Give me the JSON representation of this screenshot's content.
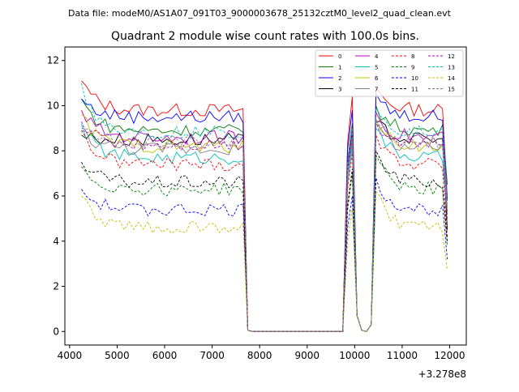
{
  "suptitle": "Data file: modeM0/AS1A07_091T03_9000003678_25132cztM0_level2_quad_clean.evt",
  "chart_data": {
    "type": "line",
    "title": "Quadrant 2 module wise count rates with 100.0s bins.",
    "xlabel": "",
    "ylabel": "",
    "x_offset_label": "+3.278e8",
    "xlim": [
      3900,
      12350
    ],
    "ylim": [
      -0.6,
      12.6
    ],
    "xticks": [
      4000,
      5000,
      6000,
      7000,
      8000,
      9000,
      10000,
      11000,
      12000
    ],
    "yticks": [
      0,
      2,
      4,
      6,
      8,
      10,
      12
    ],
    "grid": false,
    "legend": {
      "location": "top-right",
      "columns": 4
    },
    "series": [
      {
        "name": "0",
        "color": "#ff0000",
        "dash": "solid",
        "level": 9.8,
        "start": 11.1,
        "end": 5.8,
        "peak1": 10.4,
        "peak2": 10.8
      },
      {
        "name": "1",
        "color": "#008000",
        "dash": "solid",
        "level": 8.9,
        "start": 10.3,
        "end": 6.5,
        "peak1": 9.2,
        "peak2": 10.0
      },
      {
        "name": "2",
        "color": "#0000ff",
        "dash": "solid",
        "level": 9.5,
        "start": 10.3,
        "end": 5.8,
        "peak1": 9.8,
        "peak2": 10.5
      },
      {
        "name": "3",
        "color": "#000000",
        "dash": "solid",
        "level": 8.5,
        "start": 8.7,
        "end": 4.5,
        "peak1": 8.8,
        "peak2": 9.3
      },
      {
        "name": "4",
        "color": "#bf00bf",
        "dash": "solid",
        "level": 8.6,
        "start": 9.8,
        "end": 6.0,
        "peak1": 9.0,
        "peak2": 9.7
      },
      {
        "name": "5",
        "color": "#00bfbf",
        "dash": "solid",
        "level": 7.7,
        "start": 9.2,
        "end": 5.2,
        "peak1": 8.2,
        "peak2": 9.0
      },
      {
        "name": "6",
        "color": "#bfbf00",
        "dash": "solid",
        "level": 8.2,
        "start": 9.6,
        "end": 5.5,
        "peak1": 8.6,
        "peak2": 9.4
      },
      {
        "name": "7",
        "color": "#808080",
        "dash": "solid",
        "level": 8.1,
        "start": 8.9,
        "end": 5.3,
        "peak1": 8.4,
        "peak2": 9.2
      },
      {
        "name": "8",
        "color": "#ff0000",
        "dash": "dashed",
        "level": 7.4,
        "start": 8.9,
        "end": 4.2,
        "peak1": 7.9,
        "peak2": 8.7
      },
      {
        "name": "9",
        "color": "#008000",
        "dash": "dashed",
        "level": 6.3,
        "start": 7.3,
        "end": 3.8,
        "peak1": 7.0,
        "peak2": 7.8
      },
      {
        "name": "10",
        "color": "#0000ff",
        "dash": "dashed",
        "level": 5.4,
        "start": 6.3,
        "end": 3.2,
        "peak1": 6.0,
        "peak2": 6.8
      },
      {
        "name": "11",
        "color": "#000000",
        "dash": "dashed",
        "level": 6.6,
        "start": 7.5,
        "end": 4.0,
        "peak1": 7.2,
        "peak2": 8.0
      },
      {
        "name": "12",
        "color": "#bf00bf",
        "dash": "dashed",
        "level": 8.3,
        "start": 9.3,
        "end": 5.0,
        "peak1": 8.5,
        "peak2": 9.3
      },
      {
        "name": "13",
        "color": "#00bfbf",
        "dash": "dashed",
        "level": 8.8,
        "start": 11.0,
        "end": 5.5,
        "peak1": 9.0,
        "peak2": 9.9
      },
      {
        "name": "14",
        "color": "#bfbf00",
        "dash": "dashed",
        "level": 4.6,
        "start": 6.0,
        "end": 2.7,
        "peak1": 5.5,
        "peak2": 6.2
      },
      {
        "name": "15",
        "color": "#808080",
        "dash": "dashed",
        "level": 8.4,
        "start": 9.0,
        "end": 5.2,
        "peak1": 8.6,
        "peak2": 9.4
      }
    ]
  }
}
